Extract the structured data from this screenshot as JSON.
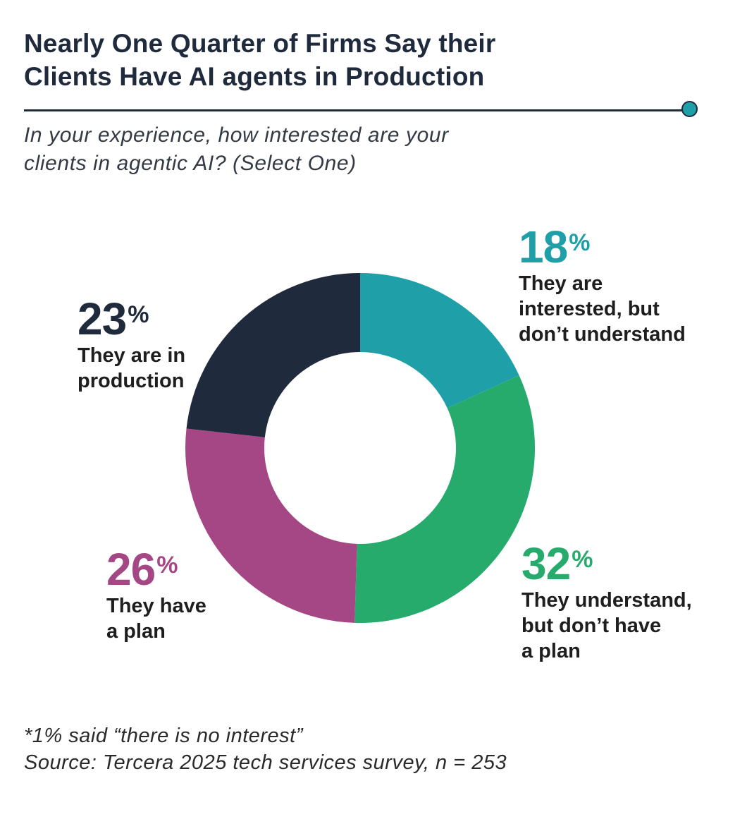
{
  "header": {
    "title_line1": "Nearly One Quarter of Firms Say their",
    "title_line2": "Clients Have AI agents in Production",
    "subtitle_line1": "In your experience, how interested are your",
    "subtitle_line2": "clients in agentic AI? (Select One)"
  },
  "chart_data": {
    "type": "pie",
    "donut": true,
    "title": "Nearly One Quarter of Firms Say their Clients Have AI agents in Production",
    "subtitle": "In your experience, how interested are your clients in agentic AI? (Select One)",
    "unit": "%",
    "slices": [
      {
        "key": "interested",
        "value": 18,
        "pct_label": "18",
        "label_lines": [
          "They are",
          "interested, but",
          "don’t understand"
        ],
        "color": "#1fa0a8",
        "text_color": "#1fa0a8"
      },
      {
        "key": "understand",
        "value": 32,
        "pct_label": "32",
        "label_lines": [
          "They understand,",
          "but don’t have",
          "a plan"
        ],
        "color": "#26ab6d",
        "text_color": "#26ab6d"
      },
      {
        "key": "plan",
        "value": 26,
        "pct_label": "26",
        "label_lines": [
          "They have",
          "a plan"
        ],
        "color": "#a54785",
        "text_color": "#a54785"
      },
      {
        "key": "production",
        "value": 23,
        "pct_label": "23",
        "label_lines": [
          "They are in",
          "production"
        ],
        "color": "#1f2a3c",
        "text_color": "#1f2a3c"
      }
    ]
  },
  "footer": {
    "note": "*1% said “there is no interest”",
    "source": "Source: Tercera 2025 tech services survey, n = 253"
  }
}
